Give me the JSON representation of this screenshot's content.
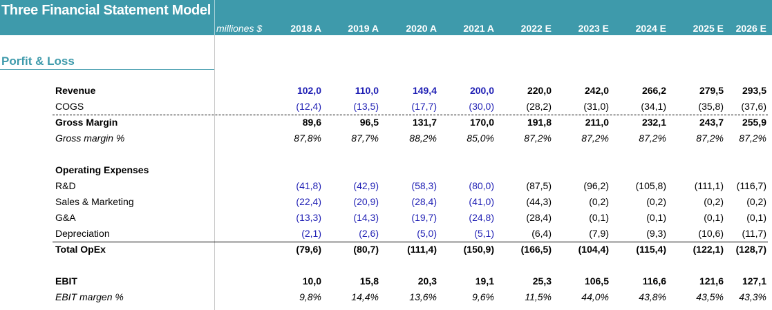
{
  "header": {
    "title": "Three Financial Statement Model",
    "units": "milliones $",
    "years": [
      "2018 A",
      "2019 A",
      "2020 A",
      "2021 A",
      "2022 E",
      "2023 E",
      "2024 E",
      "2025 E",
      "2026 E"
    ]
  },
  "section": {
    "title": "Porfit & Loss"
  },
  "colors": {
    "banner": "#3E9AAB",
    "input_blue": "#1F1FB4",
    "formula_black": "#000000"
  },
  "rows": {
    "revenue": {
      "label": "Revenue",
      "values": [
        "102,0",
        "110,0",
        "149,4",
        "200,0",
        "220,0",
        "242,0",
        "266,2",
        "279,5",
        "293,5"
      ]
    },
    "cogs": {
      "label": "COGS",
      "values": [
        "(12,4)",
        "(13,5)",
        "(17,7)",
        "(30,0)",
        "(28,2)",
        "(31,0)",
        "(34,1)",
        "(35,8)",
        "(37,6)"
      ]
    },
    "gross": {
      "label": "Gross Margin",
      "values": [
        "89,6",
        "96,5",
        "131,7",
        "170,0",
        "191,8",
        "211,0",
        "232,1",
        "243,7",
        "255,9"
      ]
    },
    "gross_pct": {
      "label": "Gross margin %",
      "values": [
        "87,8%",
        "87,7%",
        "88,2%",
        "85,0%",
        "87,2%",
        "87,2%",
        "87,2%",
        "87,2%",
        "87,2%"
      ]
    },
    "opex_head": {
      "label": "Operating Expenses"
    },
    "rd": {
      "label": "R&D",
      "values": [
        "(41,8)",
        "(42,9)",
        "(58,3)",
        "(80,0)",
        "(87,5)",
        "(96,2)",
        "(105,8)",
        "(111,1)",
        "(116,7)"
      ]
    },
    "sm": {
      "label": "Sales & Marketing",
      "values": [
        "(22,4)",
        "(20,9)",
        "(28,4)",
        "(41,0)",
        "(44,3)",
        "(0,2)",
        "(0,2)",
        "(0,2)",
        "(0,2)"
      ]
    },
    "ga": {
      "label": "G&A",
      "values": [
        "(13,3)",
        "(14,3)",
        "(19,7)",
        "(24,8)",
        "(28,4)",
        "(0,1)",
        "(0,1)",
        "(0,1)",
        "(0,1)"
      ]
    },
    "dep": {
      "label": "Depreciation",
      "values": [
        "(2,1)",
        "(2,6)",
        "(5,0)",
        "(5,1)",
        "(6,4)",
        "(7,9)",
        "(9,3)",
        "(10,6)",
        "(11,7)"
      ]
    },
    "opex": {
      "label": "Total OpEx",
      "values": [
        "(79,6)",
        "(80,7)",
        "(111,4)",
        "(150,9)",
        "(166,5)",
        "(104,4)",
        "(115,4)",
        "(122,1)",
        "(128,7)"
      ]
    },
    "ebit": {
      "label": "EBIT",
      "values": [
        "10,0",
        "15,8",
        "20,3",
        "19,1",
        "25,3",
        "106,5",
        "116,6",
        "121,6",
        "127,1"
      ]
    },
    "ebit_pct": {
      "label": "EBIT margen %",
      "values": [
        "9,8%",
        "14,4%",
        "13,6%",
        "9,6%",
        "11,5%",
        "44,0%",
        "43,8%",
        "43,5%",
        "43,3%"
      ]
    }
  }
}
